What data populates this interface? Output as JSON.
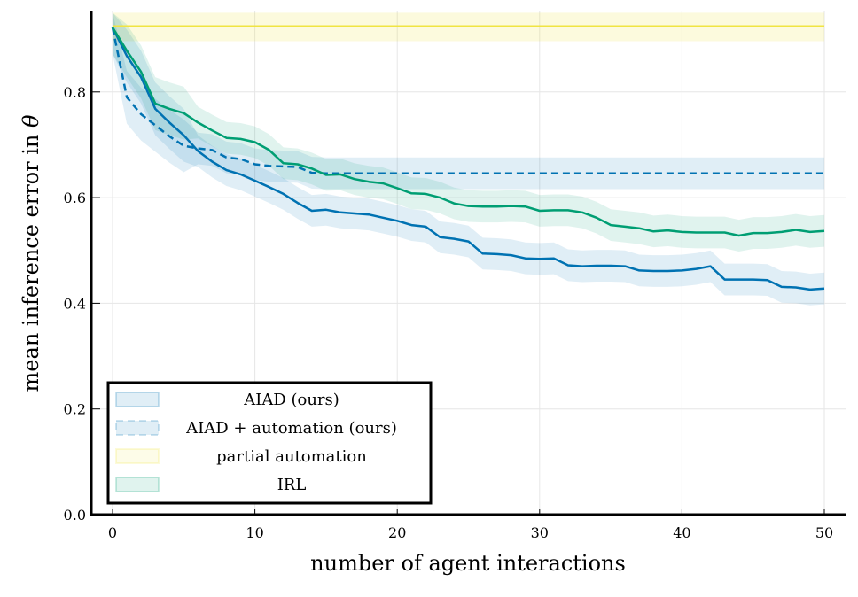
{
  "chart_data": {
    "type": "line",
    "title": "",
    "xlabel": "number of agent interactions",
    "ylabel": "mean inference error in θ",
    "xlim": [
      -1.5,
      51.5
    ],
    "ylim": [
      0.0,
      0.95
    ],
    "xticks": [
      0,
      10,
      20,
      30,
      40,
      50
    ],
    "xtick_labels": [
      "0",
      "10",
      "20",
      "30",
      "40",
      "50"
    ],
    "yticks": [
      0.0,
      0.2,
      0.4,
      0.6,
      0.8
    ],
    "ytick_labels": [
      "0.0",
      "0.2",
      "0.4",
      "0.6",
      "0.8"
    ],
    "grid": true,
    "legend_position": "bottom-left",
    "x": [
      0,
      1,
      2,
      3,
      4,
      5,
      6,
      7,
      8,
      9,
      10,
      11,
      12,
      13,
      14,
      15,
      16,
      17,
      18,
      19,
      20,
      21,
      22,
      23,
      24,
      25,
      26,
      27,
      28,
      29,
      30,
      31,
      32,
      33,
      34,
      35,
      36,
      37,
      38,
      39,
      40,
      41,
      42,
      43,
      44,
      45,
      46,
      47,
      48,
      49,
      50
    ],
    "series": [
      {
        "name": "AIAD (ours)",
        "style": "solid",
        "color": "#0072b2",
        "values": [
          0.922,
          0.868,
          0.828,
          0.768,
          0.742,
          0.718,
          0.688,
          0.668,
          0.652,
          0.644,
          0.632,
          0.62,
          0.607,
          0.59,
          0.575,
          0.577,
          0.572,
          0.57,
          0.568,
          0.562,
          0.556,
          0.548,
          0.545,
          0.525,
          0.522,
          0.517,
          0.494,
          0.493,
          0.491,
          0.485,
          0.484,
          0.485,
          0.472,
          0.47,
          0.471,
          0.471,
          0.47,
          0.462,
          0.461,
          0.461,
          0.462,
          0.465,
          0.47,
          0.445,
          0.445,
          0.445,
          0.444,
          0.431,
          0.43,
          0.426,
          0.428
        ],
        "band": 0.03
      },
      {
        "name": "AIAD + automation (ours)",
        "style": "dashed",
        "color": "#0072b2",
        "values": [
          0.922,
          0.79,
          0.758,
          0.737,
          0.716,
          0.698,
          0.693,
          0.69,
          0.676,
          0.673,
          0.663,
          0.66,
          0.659,
          0.658,
          0.647,
          0.646,
          0.646,
          0.646,
          0.646,
          0.646,
          0.646,
          0.646,
          0.646,
          0.646,
          0.646,
          0.646,
          0.646,
          0.646,
          0.646,
          0.646,
          0.646,
          0.646,
          0.646,
          0.646,
          0.646,
          0.646,
          0.646,
          0.646,
          0.646,
          0.646,
          0.646,
          0.646,
          0.646,
          0.646,
          0.646,
          0.646,
          0.646,
          0.646,
          0.646,
          0.646,
          0.646
        ],
        "band": 0.03
      },
      {
        "name": "partial automation",
        "style": "solid",
        "color": "#f0e442",
        "values": [
          0.924,
          0.924,
          0.924,
          0.924,
          0.924,
          0.924,
          0.924,
          0.924,
          0.924,
          0.924,
          0.924,
          0.924,
          0.924,
          0.924,
          0.924,
          0.924,
          0.924,
          0.924,
          0.924,
          0.924,
          0.924,
          0.924,
          0.924,
          0.924,
          0.924,
          0.924,
          0.924,
          0.924,
          0.924,
          0.924,
          0.924,
          0.924,
          0.924,
          0.924,
          0.924,
          0.924,
          0.924,
          0.924,
          0.924,
          0.924,
          0.924,
          0.924,
          0.924,
          0.924,
          0.924,
          0.924,
          0.924,
          0.924,
          0.924,
          0.924,
          0.924
        ],
        "band": 0.028
      },
      {
        "name": "IRL",
        "style": "solid",
        "color": "#009e73",
        "values": [
          0.922,
          0.878,
          0.838,
          0.778,
          0.768,
          0.76,
          0.742,
          0.727,
          0.713,
          0.711,
          0.705,
          0.69,
          0.665,
          0.663,
          0.655,
          0.643,
          0.644,
          0.635,
          0.63,
          0.627,
          0.618,
          0.608,
          0.607,
          0.6,
          0.589,
          0.584,
          0.583,
          0.583,
          0.584,
          0.583,
          0.575,
          0.576,
          0.576,
          0.572,
          0.562,
          0.548,
          0.545,
          0.542,
          0.536,
          0.538,
          0.535,
          0.534,
          0.534,
          0.534,
          0.528,
          0.533,
          0.533,
          0.535,
          0.539,
          0.535,
          0.537
        ],
        "band": 0.03
      }
    ]
  },
  "legend": {
    "items": [
      {
        "label": "AIAD (ours)",
        "fill": "#0072b2",
        "dashed": false
      },
      {
        "label": "AIAD + automation (ours)",
        "fill": "#0072b2",
        "dashed": true
      },
      {
        "label": "partial automation",
        "fill": "#f0e442",
        "dashed": false
      },
      {
        "label": "IRL",
        "fill": "#009e73",
        "dashed": false
      }
    ]
  }
}
